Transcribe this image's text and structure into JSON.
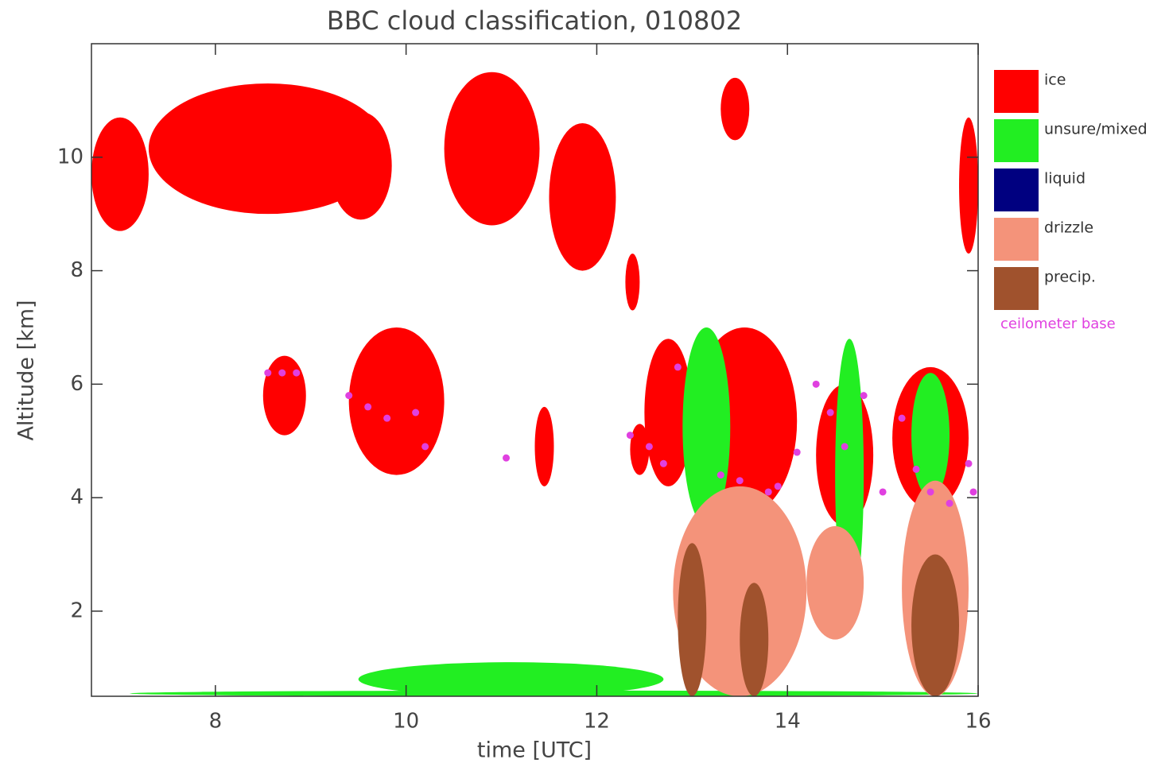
{
  "chart_data": {
    "type": "classification",
    "title": "BBC cloud classification, 010802",
    "xlabel": "time [UTC]",
    "ylabel": "Altitude [km]",
    "xlim": [
      6.7,
      16
    ],
    "xticks": [
      8,
      10,
      12,
      14,
      16
    ],
    "ylim": [
      0.5,
      12
    ],
    "yticks": [
      2,
      4,
      6,
      8,
      10
    ],
    "series": [
      {
        "name": "ice",
        "color": "#ff0000",
        "regions": [
          [
            6.7,
            7.3,
            8.7,
            10.7
          ],
          [
            7.3,
            9.8,
            9.0,
            11.3
          ],
          [
            9.2,
            9.85,
            8.9,
            10.8
          ],
          [
            10.4,
            11.4,
            8.8,
            11.5
          ],
          [
            11.5,
            12.2,
            8.0,
            10.6
          ],
          [
            12.3,
            12.45,
            7.3,
            8.3
          ],
          [
            13.3,
            13.6,
            10.3,
            11.4
          ],
          [
            15.8,
            16.0,
            8.3,
            10.7
          ],
          [
            8.5,
            8.95,
            5.1,
            6.5
          ],
          [
            9.4,
            10.4,
            4.4,
            7.0
          ],
          [
            11.35,
            11.55,
            4.2,
            5.6
          ],
          [
            12.35,
            12.55,
            4.4,
            5.3
          ],
          [
            12.5,
            13.0,
            4.2,
            6.8
          ],
          [
            13.0,
            14.1,
            3.7,
            7.0
          ],
          [
            15.1,
            15.9,
            3.8,
            6.3
          ],
          [
            14.3,
            14.9,
            3.5,
            6.0
          ]
        ]
      },
      {
        "name": "unsure/mixed",
        "color": "#22ee22",
        "regions": [
          [
            12.9,
            13.4,
            3.5,
            7.0
          ],
          [
            15.3,
            15.7,
            4.0,
            6.2
          ],
          [
            7.1,
            16.0,
            0.5,
            0.6
          ],
          [
            9.5,
            12.7,
            0.5,
            1.1
          ],
          [
            14.5,
            14.8,
            2.0,
            6.8
          ]
        ]
      },
      {
        "name": "liquid",
        "color": "#000080",
        "regions": []
      },
      {
        "name": "drizzle",
        "color": "#f4937a",
        "regions": [
          [
            12.8,
            14.2,
            0.5,
            4.2
          ],
          [
            15.2,
            15.9,
            0.5,
            4.3
          ],
          [
            14.2,
            14.8,
            1.5,
            3.5
          ]
        ]
      },
      {
        "name": "precip.",
        "color": "#a0522d",
        "regions": [
          [
            12.85,
            13.15,
            0.5,
            3.2
          ],
          [
            15.3,
            15.8,
            0.5,
            3.0
          ],
          [
            13.5,
            13.8,
            0.5,
            2.5
          ]
        ]
      }
    ],
    "ceilometer": {
      "name": "ceilometer base",
      "color": "#e040e0",
      "x": [
        8.55,
        8.7,
        8.85,
        9.4,
        9.6,
        9.8,
        10.1,
        10.2,
        11.05,
        12.35,
        12.55,
        12.7,
        12.85,
        13.3,
        13.5,
        13.8,
        13.9,
        14.1,
        14.3,
        14.45,
        14.6,
        14.8,
        15.0,
        15.2,
        15.35,
        15.5,
        15.7,
        15.95,
        15.9
      ],
      "y": [
        6.2,
        6.2,
        6.2,
        5.8,
        5.6,
        5.4,
        5.5,
        4.9,
        4.7,
        5.1,
        4.9,
        4.6,
        6.3,
        4.4,
        4.3,
        4.1,
        4.2,
        4.8,
        6.0,
        5.5,
        4.9,
        5.8,
        4.1,
        5.4,
        4.5,
        4.1,
        3.9,
        4.1,
        4.6
      ]
    }
  }
}
